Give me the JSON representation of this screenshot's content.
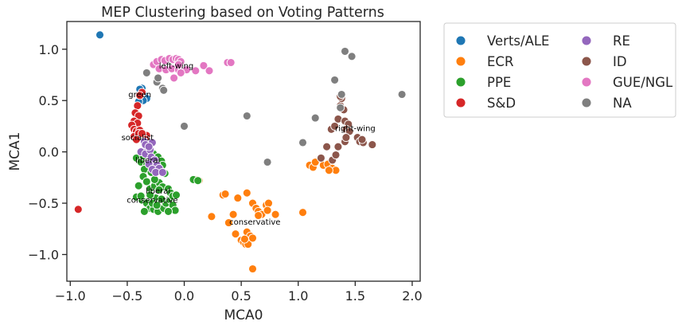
{
  "chart_data": {
    "type": "scatter",
    "title": "MEP Clustering based on Voting Patterns",
    "xlabel": "MCA0",
    "ylabel": "MCA1",
    "xlim": [
      -1.03,
      2.07
    ],
    "ylim": [
      -1.26,
      1.27
    ],
    "xticks": [
      -1.0,
      -0.5,
      0.0,
      0.5,
      1.0,
      1.5,
      2.0
    ],
    "xtick_labels": [
      "−1.0",
      "−0.5",
      "0.0",
      "0.5",
      "1.0",
      "1.5",
      "2.0"
    ],
    "yticks": [
      -1.0,
      -0.5,
      0.0,
      0.5,
      1.0
    ],
    "ytick_labels": [
      "−1.0",
      "−0.5",
      "0.0",
      "0.5",
      "1.0"
    ],
    "grid": false,
    "legend_position": "outside-right-top",
    "series": [
      {
        "name": "Verts/ALE",
        "color": "#1f77b4",
        "points": [
          [
            -0.74,
            1.14
          ],
          [
            -0.37,
            0.62
          ],
          [
            -0.39,
            0.61
          ],
          [
            -0.35,
            0.55
          ],
          [
            -0.33,
            0.52
          ],
          [
            -0.36,
            0.5
          ],
          [
            -0.4,
            0.49
          ],
          [
            -0.38,
            0.56
          ]
        ]
      },
      {
        "name": "ECR",
        "color": "#ff7f0e",
        "points": [
          [
            0.1,
            -0.27
          ],
          [
            0.13,
            -0.28
          ],
          [
            0.24,
            -0.63
          ],
          [
            0.34,
            -0.42
          ],
          [
            0.36,
            -0.41
          ],
          [
            0.39,
            -0.69
          ],
          [
            0.43,
            -0.61
          ],
          [
            0.45,
            -0.8
          ],
          [
            0.47,
            -0.45
          ],
          [
            0.5,
            -0.86
          ],
          [
            0.52,
            -0.88
          ],
          [
            0.54,
            -0.9
          ],
          [
            0.55,
            -0.78
          ],
          [
            0.58,
            -0.82
          ],
          [
            0.56,
            -0.9
          ],
          [
            0.53,
            -0.85
          ],
          [
            0.6,
            -0.84
          ],
          [
            0.6,
            -1.14
          ],
          [
            0.55,
            -0.4
          ],
          [
            0.6,
            -0.5
          ],
          [
            0.63,
            -0.55
          ],
          [
            0.65,
            -0.58
          ],
          [
            0.68,
            -0.61
          ],
          [
            0.72,
            -0.52
          ],
          [
            0.74,
            -0.5
          ],
          [
            0.73,
            -0.57
          ],
          [
            0.8,
            -0.61
          ],
          [
            0.65,
            -0.62
          ],
          [
            1.04,
            -0.59
          ],
          [
            1.1,
            -0.13
          ],
          [
            1.13,
            -0.15
          ],
          [
            1.15,
            -0.1
          ],
          [
            1.22,
            -0.13
          ],
          [
            1.26,
            -0.12
          ],
          [
            1.3,
            -0.16
          ],
          [
            1.33,
            -0.18
          ],
          [
            1.27,
            -0.18
          ]
        ]
      },
      {
        "name": "PPE",
        "color": "#2ca02c",
        "points": [
          [
            -0.42,
            -0.06
          ],
          [
            -0.38,
            -0.1
          ],
          [
            -0.33,
            -0.13
          ],
          [
            -0.3,
            -0.15
          ],
          [
            -0.36,
            -0.04
          ],
          [
            -0.27,
            -0.02
          ],
          [
            -0.23,
            -0.05
          ],
          [
            -0.2,
            -0.09
          ],
          [
            -0.19,
            -0.13
          ],
          [
            -0.21,
            -0.18
          ],
          [
            -0.17,
            -0.21
          ],
          [
            -0.35,
            -0.17
          ],
          [
            -0.29,
            -0.2
          ],
          [
            -0.36,
            -0.24
          ],
          [
            -0.33,
            -0.29
          ],
          [
            -0.4,
            -0.33
          ],
          [
            -0.3,
            -0.36
          ],
          [
            -0.26,
            -0.33
          ],
          [
            -0.22,
            -0.3
          ],
          [
            -0.19,
            -0.34
          ],
          [
            -0.14,
            -0.36
          ],
          [
            -0.12,
            -0.4
          ],
          [
            -0.42,
            -0.44
          ],
          [
            -0.37,
            -0.47
          ],
          [
            -0.33,
            -0.5
          ],
          [
            -0.3,
            -0.55
          ],
          [
            -0.27,
            -0.56
          ],
          [
            -0.23,
            -0.58
          ],
          [
            -0.18,
            -0.55
          ],
          [
            -0.16,
            -0.5
          ],
          [
            -0.12,
            -0.47
          ],
          [
            -0.1,
            -0.52
          ],
          [
            -0.08,
            -0.57
          ],
          [
            -0.25,
            -0.45
          ],
          [
            -0.2,
            -0.46
          ],
          [
            -0.3,
            -0.42
          ],
          [
            -0.22,
            -0.37
          ],
          [
            -0.1,
            -0.43
          ],
          [
            -0.14,
            -0.58
          ],
          [
            -0.35,
            -0.58
          ],
          [
            -0.07,
            -0.42
          ],
          [
            -0.26,
            -0.27
          ],
          [
            0.08,
            -0.27
          ],
          [
            0.12,
            -0.28
          ],
          [
            -0.38,
            -0.43
          ],
          [
            -0.28,
            -0.5
          ],
          [
            -0.24,
            -0.52
          ]
        ]
      },
      {
        "name": "S&D",
        "color": "#d62728",
        "points": [
          [
            -0.93,
            -0.56
          ],
          [
            -0.37,
            0.58
          ],
          [
            -0.39,
            0.55
          ],
          [
            -0.41,
            0.45
          ],
          [
            -0.43,
            0.38
          ],
          [
            -0.4,
            0.35
          ],
          [
            -0.44,
            0.3
          ],
          [
            -0.41,
            0.28
          ],
          [
            -0.46,
            0.26
          ],
          [
            -0.44,
            0.22
          ],
          [
            -0.42,
            0.2
          ],
          [
            -0.39,
            0.21
          ],
          [
            -0.44,
            0.15
          ],
          [
            -0.36,
            0.14
          ],
          [
            -0.33,
            0.16
          ],
          [
            -0.4,
            0.18
          ],
          [
            -0.37,
            0.18
          ],
          [
            -0.34,
            0.12
          ],
          [
            -0.42,
            0.12
          ]
        ]
      },
      {
        "name": "RE",
        "color": "#9467bd",
        "points": [
          [
            -0.35,
            0.1
          ],
          [
            -0.33,
            0.03
          ],
          [
            -0.38,
            0.0
          ],
          [
            -0.34,
            -0.02
          ],
          [
            -0.3,
            0.02
          ],
          [
            -0.29,
            -0.05
          ],
          [
            -0.26,
            -0.08
          ],
          [
            -0.31,
            -0.12
          ],
          [
            -0.24,
            -0.13
          ],
          [
            -0.28,
            -0.17
          ],
          [
            -0.22,
            -0.16
          ],
          [
            -0.25,
            -0.2
          ],
          [
            -0.19,
            -0.2
          ],
          [
            -0.34,
            0.07
          ],
          [
            -0.28,
            0.09
          ],
          [
            -0.31,
            0.05
          ]
        ]
      },
      {
        "name": "ID",
        "color": "#8c564b",
        "points": [
          [
            1.2,
            -0.06
          ],
          [
            1.25,
            0.05
          ],
          [
            1.29,
            0.22
          ],
          [
            1.32,
            0.25
          ],
          [
            1.35,
            0.32
          ],
          [
            1.37,
            0.45
          ],
          [
            1.38,
            0.52
          ],
          [
            1.37,
            0.54
          ],
          [
            1.4,
            0.41
          ],
          [
            1.41,
            0.3
          ],
          [
            1.44,
            0.27
          ],
          [
            1.42,
            0.22
          ],
          [
            1.45,
            0.2
          ],
          [
            1.41,
            0.1
          ],
          [
            1.42,
            0.14
          ],
          [
            1.35,
            0.05
          ],
          [
            1.52,
            0.14
          ],
          [
            1.54,
            0.1
          ],
          [
            1.57,
            0.09
          ],
          [
            1.56,
            0.12
          ],
          [
            1.65,
            0.07
          ],
          [
            1.3,
            -0.08
          ],
          [
            1.33,
            -0.03
          ]
        ]
      },
      {
        "name": "GUE/NGL",
        "color": "#e377c2",
        "points": [
          [
            -0.27,
            0.85
          ],
          [
            -0.24,
            0.88
          ],
          [
            -0.2,
            0.9
          ],
          [
            -0.17,
            0.89
          ],
          [
            -0.13,
            0.91
          ],
          [
            -0.1,
            0.9
          ],
          [
            -0.07,
            0.91
          ],
          [
            -0.05,
            0.9
          ],
          [
            -0.03,
            0.88
          ],
          [
            -0.22,
            0.81
          ],
          [
            -0.16,
            0.8
          ],
          [
            -0.11,
            0.81
          ],
          [
            -0.05,
            0.8
          ],
          [
            0.02,
            0.8
          ],
          [
            0.1,
            0.79
          ],
          [
            0.17,
            0.84
          ],
          [
            0.22,
            0.79
          ],
          [
            0.38,
            0.87
          ],
          [
            0.41,
            0.87
          ],
          [
            -0.03,
            0.77
          ],
          [
            -0.09,
            0.72
          ],
          [
            -0.05,
            0.85
          ]
        ]
      },
      {
        "name": "NA",
        "color": "#7f7f7f",
        "points": [
          [
            -0.33,
            0.77
          ],
          [
            -0.24,
            0.68
          ],
          [
            -0.23,
            0.72
          ],
          [
            -0.19,
            0.62
          ],
          [
            -0.18,
            0.6
          ],
          [
            0.0,
            0.25
          ],
          [
            0.55,
            0.35
          ],
          [
            0.73,
            -0.1
          ],
          [
            1.04,
            0.09
          ],
          [
            1.15,
            0.33
          ],
          [
            1.32,
            0.7
          ],
          [
            1.37,
            0.43
          ],
          [
            1.38,
            0.56
          ],
          [
            1.41,
            0.98
          ],
          [
            1.47,
            0.93
          ],
          [
            1.91,
            0.56
          ]
        ]
      }
    ],
    "annotations": [
      {
        "text": "left-wing",
        "x": -0.07,
        "y": 0.84
      },
      {
        "text": "green",
        "x": -0.39,
        "y": 0.56
      },
      {
        "text": "socialist",
        "x": -0.41,
        "y": 0.14
      },
      {
        "text": "right-wing",
        "x": 1.5,
        "y": 0.23
      },
      {
        "text": "liberal",
        "x": -0.32,
        "y": -0.08
      },
      {
        "text": "liberal",
        "x": -0.23,
        "y": -0.38
      },
      {
        "text": "conservative",
        "x": -0.28,
        "y": -0.47
      },
      {
        "text": "conservative",
        "x": 0.62,
        "y": -0.68
      }
    ]
  }
}
